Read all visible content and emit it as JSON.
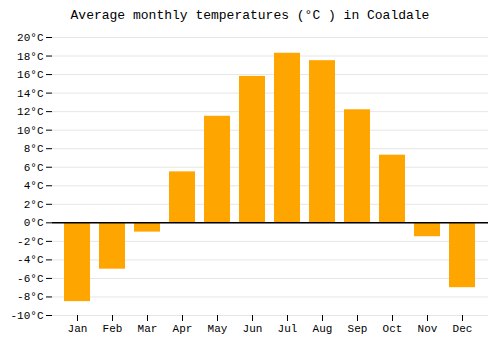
{
  "chart_data": {
    "type": "bar",
    "title": "Average monthly temperatures (°C ) in Coaldale",
    "categories": [
      "Jan",
      "Feb",
      "Mar",
      "Apr",
      "May",
      "Jun",
      "Jul",
      "Aug",
      "Sep",
      "Oct",
      "Nov",
      "Dec"
    ],
    "values": [
      -8.5,
      -5.0,
      -1.0,
      5.5,
      11.5,
      15.8,
      18.3,
      17.5,
      12.2,
      7.3,
      -1.5,
      -7.0
    ],
    "color": "#FFA500",
    "ylim": [
      -10,
      20
    ],
    "yticks": [
      {
        "value": -10,
        "label": "-10°C"
      },
      {
        "value": -8,
        "label": "-8°C"
      },
      {
        "value": -6,
        "label": "-6°C"
      },
      {
        "value": -4,
        "label": "-4°C"
      },
      {
        "value": -2,
        "label": "-2°C"
      },
      {
        "value": 0,
        "label": "0°C"
      },
      {
        "value": 2,
        "label": "2°C"
      },
      {
        "value": 4,
        "label": "4°C"
      },
      {
        "value": 6,
        "label": "6°C"
      },
      {
        "value": 8,
        "label": "8°C"
      },
      {
        "value": 10,
        "label": "10°C"
      },
      {
        "value": 12,
        "label": "12°C"
      },
      {
        "value": 14,
        "label": "14°C"
      },
      {
        "value": 16,
        "label": "16°C"
      },
      {
        "value": 18,
        "label": "18°C"
      },
      {
        "value": 20,
        "label": "20°C"
      }
    ],
    "grid": true
  }
}
